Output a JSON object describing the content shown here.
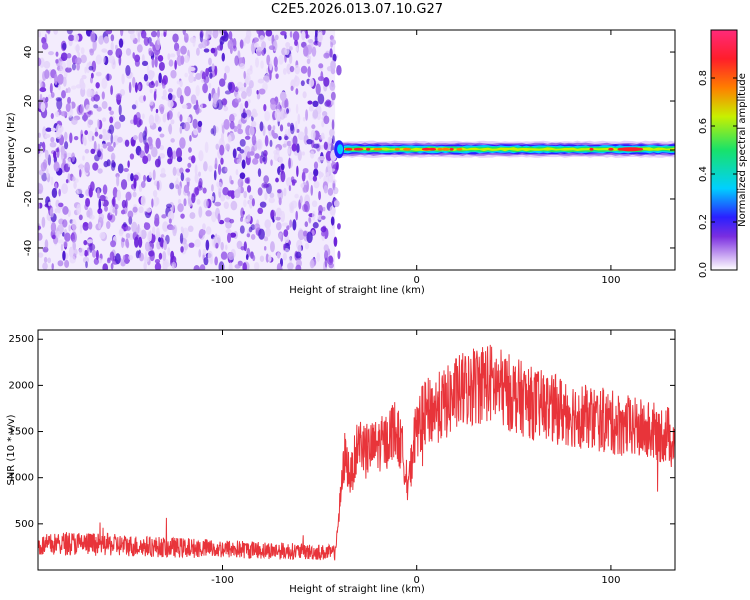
{
  "title": "C2E5.2026.013.07.10.G27",
  "chart_data": [
    {
      "type": "heatmap",
      "xlabel": "Height of straight line (km)",
      "ylabel": "Frequency (Hz)",
      "colorbar_label": "Normalized spectral amplitude",
      "xlim": [
        -195,
        133
      ],
      "ylim": [
        -49,
        49
      ],
      "x_ticks": [
        -100,
        0,
        100
      ],
      "y_ticks": [
        -40,
        -20,
        0,
        20,
        40
      ],
      "colorbar_ticks": [
        0.0,
        0.2,
        0.4,
        0.6,
        0.8
      ],
      "colorbar_range": [
        0,
        1
      ],
      "colorscale": [
        "#ffffff",
        "#c9a6f2",
        "#7a2ee0",
        "#2a20ff",
        "#00d0ff",
        "#18e26a",
        "#c8f000",
        "#ff7e00",
        "#ff1e2a",
        "#ff2a7a"
      ],
      "noise_region": {
        "x": [
          -195,
          -42
        ],
        "y": [
          -49,
          49
        ],
        "amplitude": [
          0.0,
          0.25
        ]
      },
      "signal_band": {
        "x": [
          -42,
          133
        ],
        "frequency": 0.3,
        "peak_amplitude": 0.95
      },
      "grid": false
    },
    {
      "type": "line",
      "xlabel": "Height of straight line (km)",
      "ylabel": "SNR (10 * v/v)",
      "xlim": [
        -195,
        133
      ],
      "ylim": [
        0,
        2600
      ],
      "x_ticks": [
        -100,
        0,
        100
      ],
      "y_ticks": [
        500,
        1000,
        1500,
        2000,
        2500
      ],
      "color": "#e8343a",
      "grid": false,
      "series": [
        {
          "x": [
            -195,
            -180,
            -160,
            -140,
            -120,
            -100,
            -80,
            -60,
            -42,
            -37,
            -34,
            -30,
            -25,
            -20,
            -15,
            -12,
            -8,
            -4,
            0,
            5,
            10,
            15,
            20,
            25,
            30,
            35,
            40,
            50,
            60,
            70,
            80,
            90,
            100,
            110,
            120,
            133
          ],
          "values": [
            260,
            290,
            275,
            255,
            240,
            230,
            215,
            200,
            185,
            1250,
            1000,
            1400,
            1300,
            1350,
            1400,
            1550,
            1350,
            950,
            1600,
            1700,
            1750,
            1800,
            1900,
            1950,
            2000,
            2050,
            2000,
            1900,
            1800,
            1750,
            1700,
            1650,
            1600,
            1550,
            1500,
            1450
          ]
        }
      ]
    }
  ]
}
